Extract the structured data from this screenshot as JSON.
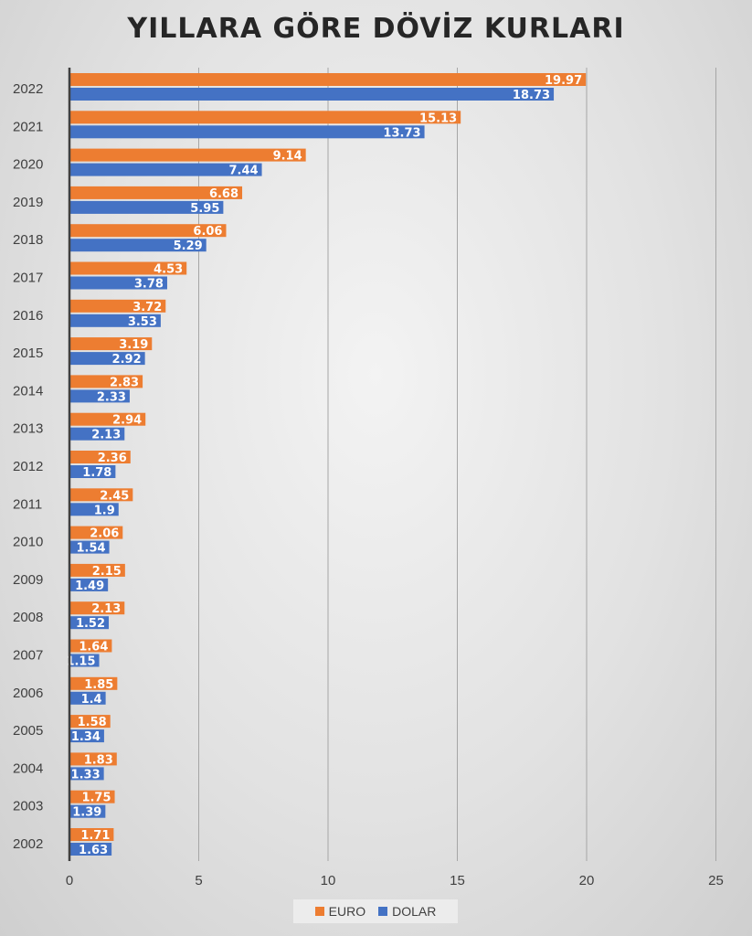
{
  "chart_data": {
    "type": "bar",
    "orientation": "horizontal",
    "title": "YILLARA GÖRE DÖVİZ KURLARI",
    "categories": [
      "2022",
      "2021",
      "2020",
      "2019",
      "2018",
      "2017",
      "2016",
      "2015",
      "2014",
      "2013",
      "2012",
      "2011",
      "2010",
      "2009",
      "2008",
      "2007",
      "2006",
      "2005",
      "2004",
      "2003",
      "2002"
    ],
    "series": [
      {
        "name": "EURO",
        "color": "#ED7D31",
        "values": [
          19.97,
          15.13,
          9.14,
          6.68,
          6.06,
          4.53,
          3.72,
          3.19,
          2.83,
          2.94,
          2.36,
          2.45,
          2.06,
          2.15,
          2.13,
          1.64,
          1.85,
          1.58,
          1.83,
          1.75,
          1.71
        ]
      },
      {
        "name": "DOLAR",
        "color": "#4472C4",
        "values": [
          18.73,
          13.73,
          7.44,
          5.95,
          5.29,
          3.78,
          3.53,
          2.92,
          2.33,
          2.13,
          1.78,
          1.9,
          1.54,
          1.49,
          1.52,
          1.15,
          1.4,
          1.34,
          1.33,
          1.39,
          1.63
        ]
      }
    ],
    "xlim": [
      0,
      25
    ],
    "xticks": [
      0,
      5,
      10,
      15,
      20,
      25
    ],
    "xlabel": "",
    "ylabel": "",
    "grid": true,
    "legend_position": "bottom"
  }
}
